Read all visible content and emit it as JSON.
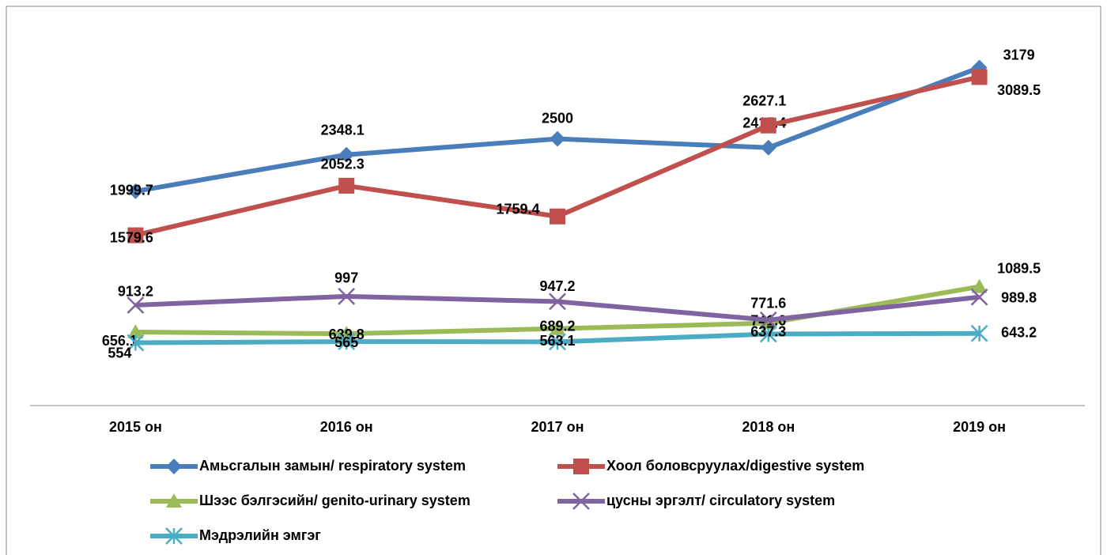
{
  "chart_data": {
    "type": "line",
    "categories": [
      "2015  он",
      "2016  он",
      "2017  он",
      "2018  он",
      "2019 он"
    ],
    "series": [
      {
        "name": "Амьсгалын замын/ respiratory system",
        "color": "#4a7ebb",
        "marker": "diamond",
        "values": [
          1999.7,
          2348.1,
          2500,
          2415.4,
          3179
        ]
      },
      {
        "name": "Хоол боловсруулах/digestive system",
        "color": "#c0504d",
        "marker": "square",
        "values": [
          1579.6,
          2052.3,
          1759.4,
          2627.1,
          3089.5
        ]
      },
      {
        "name": "Шээс бэлгэсийн/ genito-urinary system",
        "color": "#9bbb59",
        "marker": "triangle",
        "values": [
          656.1,
          639.8,
          689.2,
          741.6,
          1089.5
        ]
      },
      {
        "name": "цусны эргэлт/ circulatory system",
        "color": "#8064a2",
        "marker": "x",
        "values": [
          913.2,
          997,
          947.2,
          771.6,
          989.8
        ]
      },
      {
        "name": "Мэдрэлийн эмгэг",
        "color": "#4bacc6",
        "marker": "star",
        "values": [
          554,
          565,
          563.1,
          637.3,
          643.2
        ]
      }
    ],
    "ylim": [
      0,
      3500
    ]
  }
}
